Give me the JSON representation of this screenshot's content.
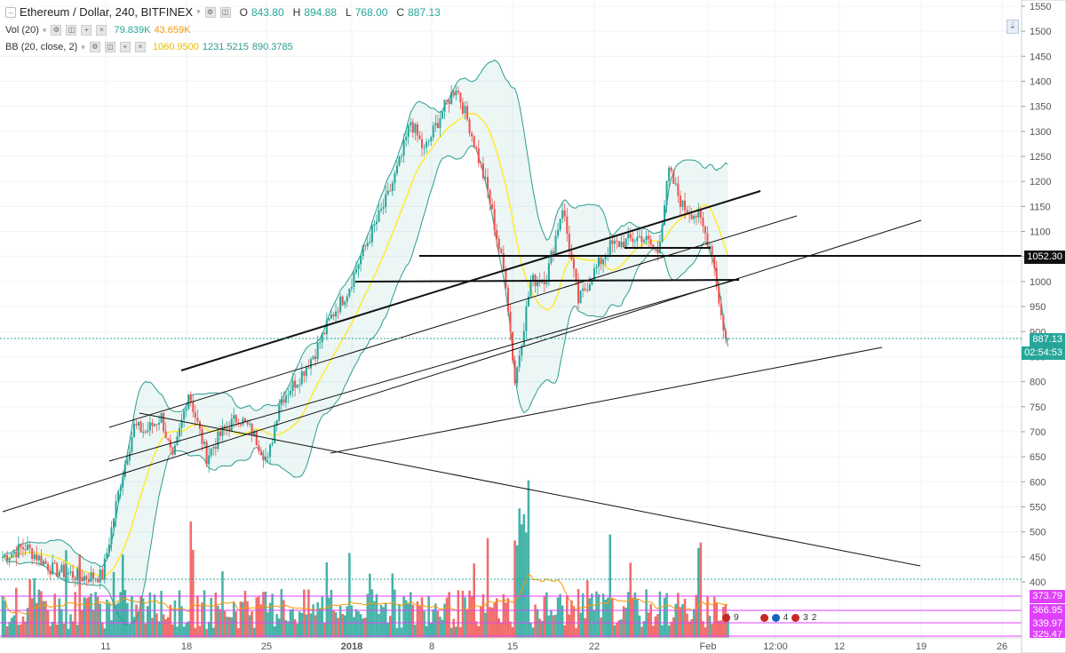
{
  "header": {
    "symbol": "Ethereum / Dollar, 240, BITFINEX",
    "o_label": "O",
    "o_value": "843.80",
    "h_label": "H",
    "h_value": "894.88",
    "l_label": "L",
    "l_value": "768.00",
    "c_label": "C",
    "c_value": "887.13"
  },
  "indicators": {
    "vol_name": "Vol (20)",
    "vol_v1": "79.839K",
    "vol_v2": "43.659K",
    "bb_name": "BB (20, close, 2)",
    "bb_v1": "1060.9500",
    "bb_v2": "1231.5215",
    "bb_v3": "890.3785"
  },
  "price_tags": {
    "level": "1052.30",
    "last": "887.13",
    "countdown": "02:54:53",
    "vol_tags": [
      "373.79",
      "366.95",
      "339.97",
      "325.47"
    ]
  },
  "event_badges": {
    "a": "9",
    "b": "4",
    "c": "3",
    "d": "2"
  },
  "colors": {
    "up": "#26a69a",
    "down": "#ef5350",
    "basis": "#ffeb3b",
    "band": "#2a9d8f",
    "volume_ma": "#ff9800"
  },
  "chart_data": {
    "type": "candlestick",
    "title": "Ethereum / Dollar, 240, BITFINEX",
    "y_axis": {
      "range": [
        375,
        1560
      ],
      "ticks": [
        400,
        450,
        500,
        550,
        600,
        650,
        700,
        750,
        800,
        850,
        900,
        950,
        1000,
        1050,
        1100,
        1150,
        1200,
        1250,
        1300,
        1350,
        1400,
        1450,
        1500,
        1550
      ]
    },
    "x_axis": {
      "ticks": [
        "11",
        "18",
        "25",
        "2018",
        "8",
        "15",
        "22",
        "Feb",
        "12:00",
        "12",
        "19",
        "26"
      ]
    },
    "price_path": [
      [
        0,
        450
      ],
      [
        10,
        470
      ],
      [
        22,
        425
      ],
      [
        35,
        410
      ],
      [
        44,
        412
      ],
      [
        52,
        600
      ],
      [
        58,
        710
      ],
      [
        63,
        700
      ],
      [
        70,
        730
      ],
      [
        75,
        640
      ],
      [
        82,
        780
      ],
      [
        90,
        650
      ],
      [
        97,
        700
      ],
      [
        104,
        730
      ],
      [
        110,
        700
      ],
      [
        117,
        640
      ],
      [
        122,
        760
      ],
      [
        131,
        810
      ],
      [
        138,
        860
      ],
      [
        145,
        930
      ],
      [
        152,
        980
      ],
      [
        158,
        1050
      ],
      [
        163,
        1100
      ],
      [
        170,
        1170
      ],
      [
        176,
        1250
      ],
      [
        180,
        1320
      ],
      [
        186,
        1260
      ],
      [
        194,
        1340
      ],
      [
        200,
        1390
      ],
      [
        206,
        1310
      ],
      [
        214,
        1180
      ],
      [
        222,
        1000
      ],
      [
        226,
        800
      ],
      [
        233,
        1000
      ],
      [
        240,
        1010
      ],
      [
        247,
        1150
      ],
      [
        254,
        960
      ],
      [
        261,
        1020
      ],
      [
        268,
        1070
      ],
      [
        275,
        1080
      ],
      [
        282,
        1090
      ],
      [
        289,
        1060
      ],
      [
        294,
        1220
      ],
      [
        300,
        1150
      ],
      [
        307,
        1130
      ],
      [
        313,
        1060
      ],
      [
        318,
        900
      ],
      [
        320,
        887
      ]
    ],
    "bollinger": {
      "basis_last": 1060.95,
      "upper_last": 1231.52,
      "lower_last": 890.38
    },
    "levels": [
      1052.3,
      1000
    ],
    "last_price": 887.13
  }
}
